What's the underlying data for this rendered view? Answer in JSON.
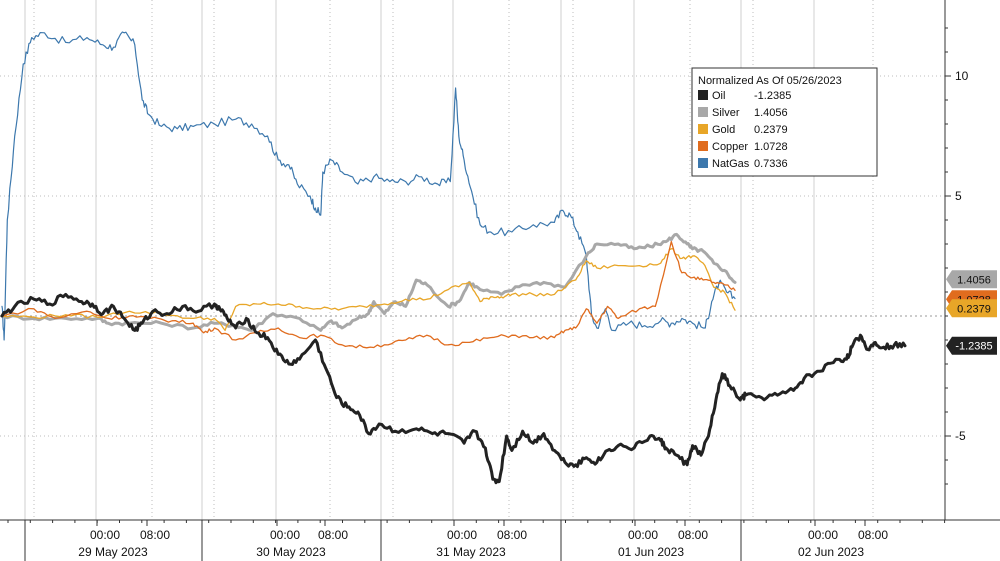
{
  "chart_data": {
    "type": "line",
    "legend": {
      "title": "Normalized As Of 05/26/2023",
      "placement": "top-right"
    },
    "y_axis": {
      "ylim": [
        -8,
        13.1
      ],
      "ticks": [
        10,
        5,
        -5
      ],
      "tick_labels": [
        "10",
        "5",
        "-5"
      ],
      "side": "right"
    },
    "x_axis": {
      "time_ticks": [
        "00:00",
        "08:00",
        "00:00",
        "08:00",
        "00:00",
        "08:00",
        "00:00",
        "08:00",
        "00:00",
        "08:00"
      ],
      "date_labels": [
        "29 May 2023",
        "30 May 2023",
        "31 May 2023",
        "01 Jun 2023",
        "02 Jun 2023"
      ]
    },
    "grid": true,
    "series": [
      {
        "name": "NatGas",
        "last_value": "0.7336",
        "color": "#3d78ad",
        "points": [
          [
            0,
            0.4
          ],
          [
            0.02,
            -1.0
          ],
          [
            0.05,
            4.0
          ],
          [
            0.12,
            7.5
          ],
          [
            0.2,
            10.5
          ],
          [
            0.28,
            11.6
          ],
          [
            0.4,
            11.8
          ],
          [
            0.6,
            11.4
          ],
          [
            0.8,
            11.6
          ],
          [
            0.95,
            11.3
          ],
          [
            1.05,
            11.2
          ],
          [
            1.15,
            11.8
          ],
          [
            1.25,
            11.3
          ],
          [
            1.32,
            9.0
          ],
          [
            1.38,
            8.4
          ],
          [
            1.5,
            7.9
          ],
          [
            1.65,
            7.8
          ],
          [
            1.8,
            7.9
          ],
          [
            2.0,
            8.0
          ],
          [
            2.2,
            8.2
          ],
          [
            2.35,
            8.0
          ],
          [
            2.5,
            7.5
          ],
          [
            2.6,
            6.5
          ],
          [
            2.7,
            6.3
          ],
          [
            2.78,
            5.5
          ],
          [
            2.9,
            5.0
          ],
          [
            2.95,
            4.5
          ],
          [
            3.0,
            4.2
          ],
          [
            3.02,
            6.0
          ],
          [
            3.1,
            6.5
          ],
          [
            3.2,
            6.0
          ],
          [
            3.35,
            5.5
          ],
          [
            3.5,
            5.8
          ],
          [
            3.65,
            5.6
          ],
          [
            3.8,
            5.6
          ],
          [
            3.95,
            5.8
          ],
          [
            4.1,
            5.5
          ],
          [
            4.22,
            5.6
          ],
          [
            4.27,
            9.5
          ],
          [
            4.3,
            7.5
          ],
          [
            4.35,
            6.5
          ],
          [
            4.42,
            5.2
          ],
          [
            4.5,
            3.8
          ],
          [
            4.6,
            3.5
          ],
          [
            4.8,
            3.5
          ],
          [
            5.0,
            3.8
          ],
          [
            5.2,
            3.9
          ],
          [
            5.28,
            4.4
          ],
          [
            5.35,
            4.2
          ],
          [
            5.42,
            3.5
          ],
          [
            5.5,
            2.5
          ],
          [
            5.55,
            0.0
          ],
          [
            5.6,
            -0.5
          ],
          [
            5.68,
            0.3
          ],
          [
            5.75,
            -0.6
          ],
          [
            5.9,
            -0.3
          ],
          [
            6.05,
            -0.4
          ],
          [
            6.2,
            -0.2
          ],
          [
            6.3,
            -0.3
          ],
          [
            6.4,
            -0.1
          ],
          [
            6.5,
            -0.3
          ],
          [
            6.62,
            -0.5
          ],
          [
            6.68,
            0.6
          ],
          [
            6.75,
            1.4
          ],
          [
            6.82,
            1.0
          ],
          [
            6.9,
            0.73
          ]
        ]
      },
      {
        "name": "Silver",
        "last_value": "1.4056",
        "color": "#a8a8a8",
        "points": [
          [
            0,
            0
          ],
          [
            0.3,
            -0.1
          ],
          [
            0.6,
            -0.1
          ],
          [
            0.9,
            -0.1
          ],
          [
            1.0,
            -0.3
          ],
          [
            1.2,
            -0.3
          ],
          [
            1.5,
            -0.3
          ],
          [
            1.8,
            -0.5
          ],
          [
            2.0,
            -0.3
          ],
          [
            2.2,
            -0.4
          ],
          [
            2.35,
            -0.6
          ],
          [
            2.55,
            0.1
          ],
          [
            2.8,
            -0.1
          ],
          [
            3.0,
            -0.6
          ],
          [
            3.1,
            -0.2
          ],
          [
            3.2,
            -0.5
          ],
          [
            3.35,
            -0.1
          ],
          [
            3.45,
            0.1
          ],
          [
            3.5,
            0.6
          ],
          [
            3.6,
            0.1
          ],
          [
            3.7,
            0.6
          ],
          [
            3.8,
            0.4
          ],
          [
            3.9,
            1.5
          ],
          [
            4.0,
            1.3
          ],
          [
            4.2,
            0.4
          ],
          [
            4.3,
            0.6
          ],
          [
            4.4,
            1.4
          ],
          [
            4.5,
            1.1
          ],
          [
            4.7,
            0.9
          ],
          [
            4.9,
            1.3
          ],
          [
            5.1,
            1.4
          ],
          [
            5.3,
            1.2
          ],
          [
            5.5,
            2.5
          ],
          [
            5.6,
            3.0
          ],
          [
            5.8,
            3.0
          ],
          [
            5.95,
            2.8
          ],
          [
            6.1,
            2.9
          ],
          [
            6.25,
            3.1
          ],
          [
            6.35,
            3.4
          ],
          [
            6.45,
            3.0
          ],
          [
            6.5,
            2.8
          ],
          [
            6.6,
            2.7
          ],
          [
            6.7,
            2.2
          ],
          [
            6.8,
            1.9
          ],
          [
            6.9,
            1.4
          ]
        ]
      },
      {
        "name": "Gold",
        "last_value": "0.2379",
        "color": "#e8a628",
        "points": [
          [
            0,
            0
          ],
          [
            0.3,
            -0.05
          ],
          [
            0.6,
            0.05
          ],
          [
            0.9,
            -0.05
          ],
          [
            1.2,
            0.2
          ],
          [
            1.5,
            0.1
          ],
          [
            1.8,
            -0.1
          ],
          [
            2.0,
            -0.1
          ],
          [
            2.1,
            -0.6
          ],
          [
            2.2,
            0.4
          ],
          [
            2.4,
            0.5
          ],
          [
            2.6,
            0.5
          ],
          [
            2.8,
            0.4
          ],
          [
            3.0,
            0.3
          ],
          [
            3.2,
            0.3
          ],
          [
            3.4,
            0.4
          ],
          [
            3.6,
            0.5
          ],
          [
            3.8,
            0.7
          ],
          [
            4.0,
            0.7
          ],
          [
            4.2,
            1.1
          ],
          [
            4.4,
            1.4
          ],
          [
            4.5,
            0.6
          ],
          [
            4.6,
            0.8
          ],
          [
            4.7,
            0.8
          ],
          [
            4.8,
            0.9
          ],
          [
            5.0,
            0.9
          ],
          [
            5.2,
            0.9
          ],
          [
            5.4,
            1.5
          ],
          [
            5.5,
            2.3
          ],
          [
            5.6,
            2.0
          ],
          [
            5.8,
            2.1
          ],
          [
            6.0,
            2.1
          ],
          [
            6.2,
            2.2
          ],
          [
            6.3,
            2.8
          ],
          [
            6.4,
            2.4
          ],
          [
            6.5,
            2.5
          ],
          [
            6.6,
            2.2
          ],
          [
            6.7,
            1.2
          ],
          [
            6.8,
            1.0
          ],
          [
            6.9,
            0.24
          ]
        ]
      },
      {
        "name": "Copper",
        "last_value": "1.0728",
        "color": "#e06c1e",
        "points": [
          [
            0,
            0
          ],
          [
            0.3,
            0.3
          ],
          [
            0.5,
            -0.1
          ],
          [
            0.8,
            0.2
          ],
          [
            1.0,
            -0.1
          ],
          [
            1.2,
            0.0
          ],
          [
            1.4,
            -0.1
          ],
          [
            1.6,
            -0.2
          ],
          [
            1.8,
            -0.3
          ],
          [
            1.9,
            -0.7
          ],
          [
            2.0,
            -0.5
          ],
          [
            2.2,
            -1.0
          ],
          [
            2.4,
            -0.7
          ],
          [
            2.6,
            -0.5
          ],
          [
            2.8,
            -0.9
          ],
          [
            3.0,
            -0.8
          ],
          [
            3.2,
            -1.2
          ],
          [
            3.4,
            -1.3
          ],
          [
            3.6,
            -1.2
          ],
          [
            3.8,
            -1.0
          ],
          [
            4.0,
            -0.8
          ],
          [
            4.2,
            -1.2
          ],
          [
            4.4,
            -1.1
          ],
          [
            4.6,
            -0.9
          ],
          [
            4.8,
            -0.8
          ],
          [
            5.0,
            -0.9
          ],
          [
            5.2,
            -0.9
          ],
          [
            5.3,
            -0.6
          ],
          [
            5.4,
            -0.5
          ],
          [
            5.5,
            0.3
          ],
          [
            5.6,
            -0.3
          ],
          [
            5.7,
            0.4
          ],
          [
            5.8,
            -0.1
          ],
          [
            6.0,
            0.3
          ],
          [
            6.15,
            0.4
          ],
          [
            6.3,
            3.1
          ],
          [
            6.4,
            1.8
          ],
          [
            6.5,
            1.6
          ],
          [
            6.6,
            1.5
          ],
          [
            6.7,
            1.4
          ],
          [
            6.8,
            1.3
          ],
          [
            6.9,
            1.07
          ]
        ]
      },
      {
        "name": "Oil",
        "last_value": "-1.2385",
        "color": "#222222",
        "points": [
          [
            0,
            0
          ],
          [
            0.12,
            0.4
          ],
          [
            0.3,
            0.7
          ],
          [
            0.45,
            0.5
          ],
          [
            0.6,
            0.9
          ],
          [
            0.75,
            0.6
          ],
          [
            0.85,
            0.5
          ],
          [
            0.95,
            0.1
          ],
          [
            1.05,
            0.4
          ],
          [
            1.15,
            -0.1
          ],
          [
            1.25,
            -0.6
          ],
          [
            1.32,
            -0.3
          ],
          [
            1.42,
            0.2
          ],
          [
            1.55,
            0.1
          ],
          [
            1.7,
            0.4
          ],
          [
            1.85,
            0.2
          ],
          [
            2.0,
            0.5
          ],
          [
            2.05,
            0.3
          ],
          [
            2.12,
            -0.1
          ],
          [
            2.2,
            -0.5
          ],
          [
            2.3,
            -0.1
          ],
          [
            2.4,
            -0.7
          ],
          [
            2.5,
            -0.9
          ],
          [
            2.6,
            -1.6
          ],
          [
            2.7,
            -2.0
          ],
          [
            2.8,
            -1.8
          ],
          [
            2.95,
            -1.0
          ],
          [
            3.05,
            -2.2
          ],
          [
            3.15,
            -3.4
          ],
          [
            3.25,
            -3.8
          ],
          [
            3.35,
            -4.0
          ],
          [
            3.45,
            -4.9
          ],
          [
            3.55,
            -4.5
          ],
          [
            3.7,
            -4.8
          ],
          [
            3.9,
            -4.7
          ],
          [
            4.05,
            -4.9
          ],
          [
            4.2,
            -4.9
          ],
          [
            4.35,
            -5.3
          ],
          [
            4.45,
            -4.8
          ],
          [
            4.55,
            -5.5
          ],
          [
            4.62,
            -6.8
          ],
          [
            4.68,
            -6.9
          ],
          [
            4.75,
            -5.0
          ],
          [
            4.8,
            -5.6
          ],
          [
            4.9,
            -4.8
          ],
          [
            5.0,
            -5.3
          ],
          [
            5.1,
            -4.9
          ],
          [
            5.2,
            -5.6
          ],
          [
            5.3,
            -6.1
          ],
          [
            5.4,
            -6.2
          ],
          [
            5.5,
            -5.9
          ],
          [
            5.6,
            -6.1
          ],
          [
            5.7,
            -5.6
          ],
          [
            5.8,
            -5.4
          ],
          [
            5.95,
            -5.5
          ],
          [
            6.1,
            -5.0
          ],
          [
            6.2,
            -5.2
          ],
          [
            6.25,
            -5.5
          ],
          [
            6.35,
            -5.8
          ],
          [
            6.45,
            -6.2
          ],
          [
            6.5,
            -5.4
          ],
          [
            6.58,
            -5.8
          ],
          [
            6.65,
            -5.0
          ],
          [
            6.72,
            -3.5
          ],
          [
            6.78,
            -2.4
          ],
          [
            6.85,
            -2.9
          ],
          [
            6.95,
            -3.5
          ],
          [
            7.0,
            -3.3
          ],
          [
            7.15,
            -3.4
          ],
          [
            7.3,
            -3.3
          ],
          [
            7.45,
            -3.1
          ],
          [
            7.55,
            -2.6
          ],
          [
            7.7,
            -2.3
          ],
          [
            7.85,
            -1.8
          ],
          [
            7.95,
            -1.8
          ],
          [
            8.0,
            -1.3
          ],
          [
            8.08,
            -0.8
          ],
          [
            8.15,
            -1.4
          ],
          [
            8.22,
            -1.1
          ],
          [
            8.3,
            -1.3
          ],
          [
            8.4,
            -1.2
          ],
          [
            8.5,
            -1.24
          ]
        ]
      }
    ]
  }
}
